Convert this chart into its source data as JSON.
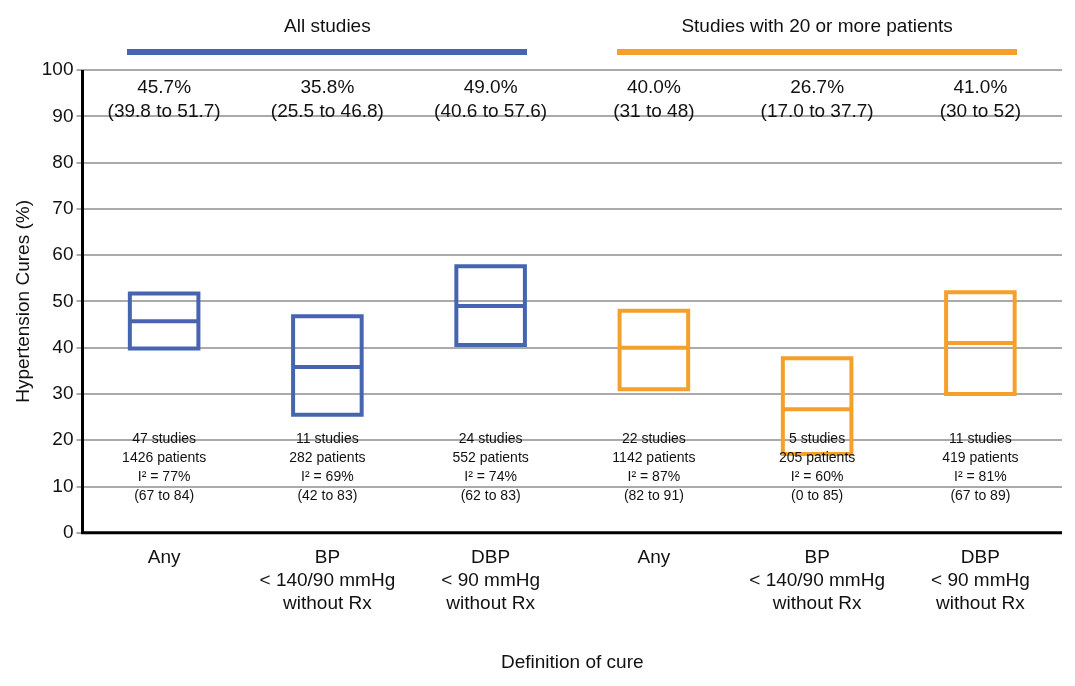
{
  "chart_data": {
    "type": "box",
    "xlabel": "Definition of cure",
    "ylabel": "Hypertension Cures (%)",
    "categories": [
      "Any",
      "BP\n< 140/90 mmHg\nwithout Rx",
      "DBP\n< 90 mmHg\nwithout Rx",
      "Any",
      "BP\n< 140/90 mmHg\nwithout Rx",
      "DBP\n< 90 mmHg\nwithout Rx"
    ],
    "boxes": [
      {
        "low": 39.8,
        "q1": 39.8,
        "median": 45.7,
        "q3": 51.7,
        "high": 51.7
      },
      {
        "low": 25.5,
        "q1": 25.5,
        "median": 35.8,
        "q3": 46.8,
        "high": 46.8
      },
      {
        "low": 40.6,
        "q1": 40.6,
        "median": 49.0,
        "q3": 57.6,
        "high": 57.6
      },
      {
        "low": 31,
        "q1": 31,
        "median": 40.0,
        "q3": 48,
        "high": 48
      },
      {
        "low": 17.0,
        "q1": 17.0,
        "median": 26.7,
        "q3": 37.7,
        "high": 37.7
      },
      {
        "low": 30,
        "q1": 30,
        "median": 41.0,
        "q3": 52,
        "high": 52
      }
    ],
    "colors": [
      "#4764b0",
      "#4764b0",
      "#4764b0",
      "#f5a02a",
      "#f5a02a",
      "#f5a02a"
    ],
    "ylim": [
      0,
      100
    ],
    "yticks": [
      0,
      10,
      20,
      30,
      40,
      50,
      60,
      70,
      80,
      90,
      100
    ],
    "grid": "y",
    "annotations": [
      "All studies",
      "Studies with 20 or more patients",
      "45.7%\n(39.8 to 51.7)",
      "35.8%\n(25.5 to 46.8)",
      "49.0%\n(40.6 to 57.6)",
      "40.0%\n(31 to 48)",
      "26.7%\n(17.0 to 37.7)",
      "41.0%\n(30 to 52)",
      "47 studies\n1426 patients\nI² = 77%\n(67 to 84)",
      "11 studies\n282 patients\nI² = 69%\n(42 to 83)",
      "24 studies\n552 patients\nI² = 74%\n(62 to 83)",
      "22 studies\n1142 patients\nI² = 87%\n(82 to 91)",
      "5 studies\n205 patients\nI² = 60%\n(0 to 85)",
      "11 studies\n419 patients\nI² = 81%\n(67 to 89)"
    ]
  }
}
